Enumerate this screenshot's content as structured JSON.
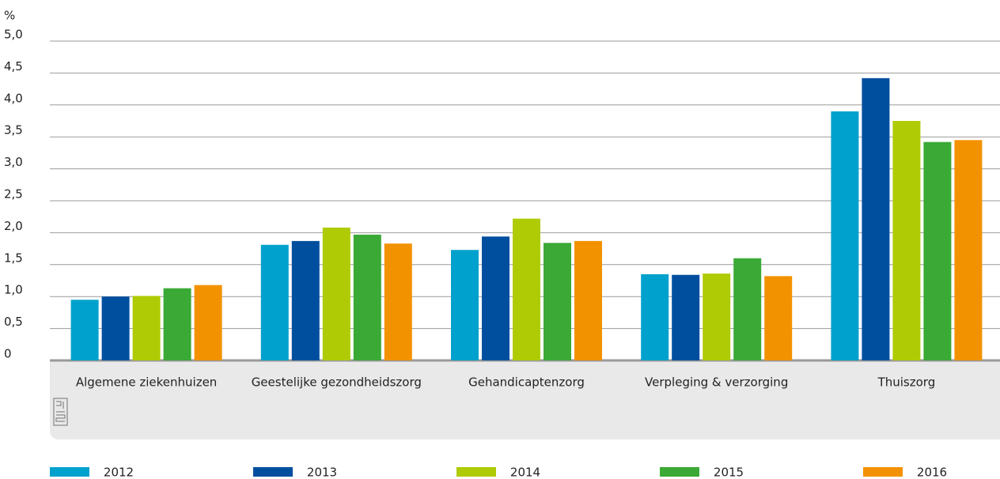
{
  "chart_data": {
    "type": "bar",
    "ylabel": "%",
    "categories": [
      "Algemene ziekenhuizen",
      "Geestelijke gezondheidszorg",
      "Gehandicaptenzorg",
      "Verpleging & verzorging",
      "Thuiszorg"
    ],
    "series": [
      {
        "name": "2012",
        "color": "#00a1cd",
        "values": [
          0.95,
          1.81,
          1.73,
          1.35,
          3.9
        ]
      },
      {
        "name": "2013",
        "color": "#004f9f",
        "values": [
          1.0,
          1.87,
          1.94,
          1.34,
          4.42
        ]
      },
      {
        "name": "2014",
        "color": "#afcb05",
        "values": [
          1.01,
          2.08,
          2.22,
          1.36,
          3.75
        ]
      },
      {
        "name": "2015",
        "color": "#3aa935",
        "values": [
          1.13,
          1.97,
          1.84,
          1.6,
          3.42
        ]
      },
      {
        "name": "2016",
        "color": "#f39200",
        "values": [
          1.18,
          1.83,
          1.87,
          1.32,
          3.45
        ]
      }
    ],
    "ylim": [
      0,
      5
    ],
    "yticks": [
      0,
      {
        "value": 0.5,
        "label": "0,5"
      },
      {
        "value": 1,
        "label": "1,0"
      },
      {
        "value": 1.5,
        "label": "1,5"
      },
      {
        "value": 2,
        "label": "2,0"
      },
      {
        "value": 2.5,
        "label": "2,5"
      },
      {
        "value": 3,
        "label": "3,0"
      },
      {
        "value": 3.5,
        "label": "3,5"
      },
      {
        "value": 4,
        "label": "4,0"
      },
      {
        "value": 4.5,
        "label": "4,5"
      },
      {
        "value": 5,
        "label": "5,0"
      }
    ],
    "grid": true,
    "legend": "bottom"
  }
}
